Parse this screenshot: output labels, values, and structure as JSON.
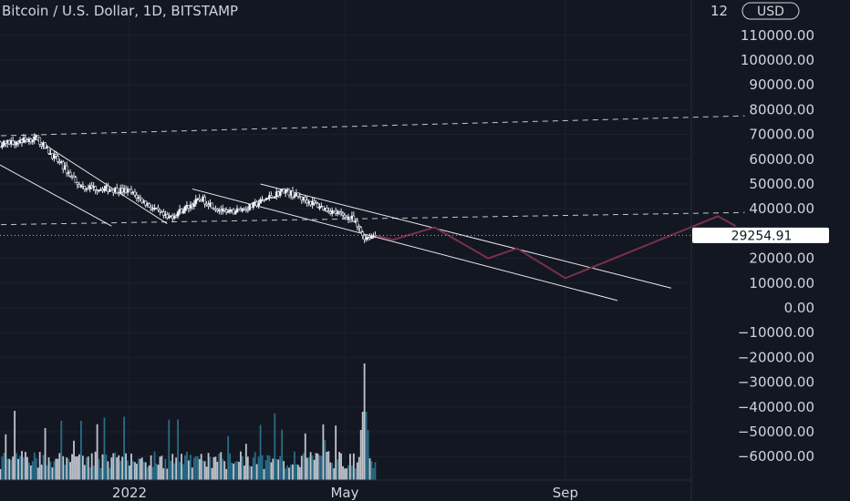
{
  "header": {
    "title": "Bitcoin / U.S. Dollar, 1D, BITSTAMP"
  },
  "price_axis": {
    "currency_label": "USD",
    "top_cut_label": "12",
    "labels": [
      "110000.00",
      "100000.00",
      "90000.00",
      "80000.00",
      "70000.00",
      "60000.00",
      "50000.00",
      "40000.00",
      "20000.00",
      "10000.00",
      "0.00",
      "−10000.00",
      "−20000.00",
      "−30000.00",
      "−40000.00",
      "−50000.00",
      "−60000.00"
    ],
    "last_price": "29254.91"
  },
  "time_axis": {
    "labels": [
      "2022",
      "May",
      "Sep"
    ]
  },
  "colors": {
    "background": "#131722",
    "up": "#26a69a",
    "down": "#ef5350",
    "candle_fill": "#ffffff",
    "projection": "#7b2f49",
    "trendline": "#ffffff",
    "price_tag": "#ffffff"
  },
  "chart_data": {
    "type": "candlestick",
    "title": "Bitcoin / U.S. Dollar, 1D, BITSTAMP",
    "ylim": [
      -67000,
      123000
    ],
    "x_ticks": [
      {
        "label": "2022",
        "x": "2022-01-01"
      },
      {
        "label": "May",
        "x": "2022-05-01"
      },
      {
        "label": "Sep",
        "x": "2022-09-01"
      }
    ],
    "price_path": [
      {
        "x": "2021-10-01",
        "price": 62000
      },
      {
        "x": "2021-10-20",
        "price": 66000
      },
      {
        "x": "2021-11-10",
        "price": 68500
      },
      {
        "x": "2021-11-25",
        "price": 57000
      },
      {
        "x": "2021-12-05",
        "price": 49000
      },
      {
        "x": "2021-12-20",
        "price": 48000
      },
      {
        "x": "2022-01-01",
        "price": 47000
      },
      {
        "x": "2022-01-22",
        "price": 36000
      },
      {
        "x": "2022-02-10",
        "price": 44000
      },
      {
        "x": "2022-02-24",
        "price": 38000
      },
      {
        "x": "2022-03-10",
        "price": 41000
      },
      {
        "x": "2022-03-28",
        "price": 47500
      },
      {
        "x": "2022-04-20",
        "price": 40000
      },
      {
        "x": "2022-05-05",
        "price": 36000
      },
      {
        "x": "2022-05-12",
        "price": 28500
      },
      {
        "x": "2022-05-18",
        "price": 29254.91
      }
    ],
    "volume_spike": {
      "x": "2022-05-12",
      "relative": 1.0
    },
    "projection_path": [
      {
        "x": "2022-05-18",
        "price": 29254.91
      },
      {
        "x": "2022-05-28",
        "price": 27500
      },
      {
        "x": "2022-06-20",
        "price": 32500
      },
      {
        "x": "2022-07-20",
        "price": 20000
      },
      {
        "x": "2022-08-05",
        "price": 24000
      },
      {
        "x": "2022-09-01",
        "price": 12000
      },
      {
        "x": "2022-11-25",
        "price": 37000
      },
      {
        "x": "2022-12-05",
        "price": 33000
      }
    ],
    "trendlines": [
      {
        "style": "dashed",
        "from": {
          "x": "2021-09-01",
          "price": 68500
        },
        "to": {
          "x": "2022-12-10",
          "price": 77500
        }
      },
      {
        "style": "dashed",
        "from": {
          "x": "2021-09-01",
          "price": 33000
        },
        "to": {
          "x": "2022-12-10",
          "price": 38500
        }
      },
      {
        "style": "solid",
        "from": {
          "x": "2021-11-08",
          "price": 69000
        },
        "to": {
          "x": "2022-01-22",
          "price": 34000
        }
      },
      {
        "style": "solid",
        "from": {
          "x": "2021-10-10",
          "price": 62000
        },
        "to": {
          "x": "2021-12-22",
          "price": 33000
        }
      },
      {
        "style": "solid",
        "from": {
          "x": "2022-02-05",
          "price": 48000
        },
        "to": {
          "x": "2022-09-30",
          "price": 3000
        }
      },
      {
        "style": "solid",
        "from": {
          "x": "2022-03-15",
          "price": 50000
        },
        "to": {
          "x": "2022-10-30",
          "price": 8000
        }
      }
    ],
    "last_price": 29254.91
  }
}
